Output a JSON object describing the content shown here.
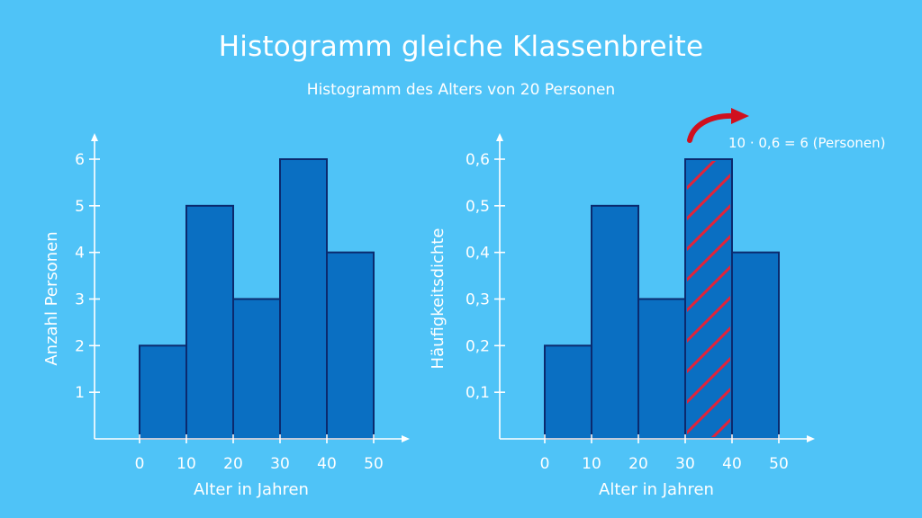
{
  "title": "Histogramm gleiche Klassenbreite",
  "subtitle": "Histogramm des Alters von 20 Personen",
  "colors": {
    "background": "#4fc3f7",
    "bar_fill": "#0a6fc2",
    "bar_stroke": "#0b2a6e",
    "hatch": "#e0243a",
    "annotation_arrow": "#d0101e"
  },
  "chart_data": [
    {
      "type": "bar",
      "xlabel": "Alter in Jahren",
      "ylabel": "Anzahl Personen",
      "bin_edges": [
        0,
        10,
        20,
        30,
        40,
        50
      ],
      "values": [
        2,
        5,
        3,
        6,
        4
      ],
      "xticks": [
        0,
        10,
        20,
        30,
        40,
        50
      ],
      "xtick_labels": [
        "0",
        "10",
        "20",
        "30",
        "40",
        "50"
      ],
      "yticks": [
        1,
        2,
        3,
        4,
        5,
        6
      ],
      "ytick_labels": [
        "1",
        "2",
        "3",
        "4",
        "5",
        "6"
      ],
      "xlim": [
        -10,
        58
      ],
      "ylim": [
        0,
        6.6
      ],
      "grid": false
    },
    {
      "type": "bar",
      "xlabel": "Alter in Jahren",
      "ylabel": "Häufigkeitsdichte",
      "bin_edges": [
        0,
        10,
        20,
        30,
        40,
        50
      ],
      "values": [
        0.2,
        0.5,
        0.3,
        0.6,
        0.4
      ],
      "xticks": [
        0,
        10,
        20,
        30,
        40,
        50
      ],
      "xtick_labels": [
        "0",
        "10",
        "20",
        "30",
        "40",
        "50"
      ],
      "yticks": [
        0.1,
        0.2,
        0.3,
        0.4,
        0.5,
        0.6
      ],
      "ytick_labels": [
        "0,1",
        "0,2",
        "0,3",
        "0,4",
        "0,5",
        "0,6"
      ],
      "xlim": [
        -10,
        58
      ],
      "ylim": [
        0,
        0.66
      ],
      "grid": false,
      "highlighted_bin": 3,
      "annotation": "10 · 0,6 = 6 (Personen)"
    }
  ]
}
